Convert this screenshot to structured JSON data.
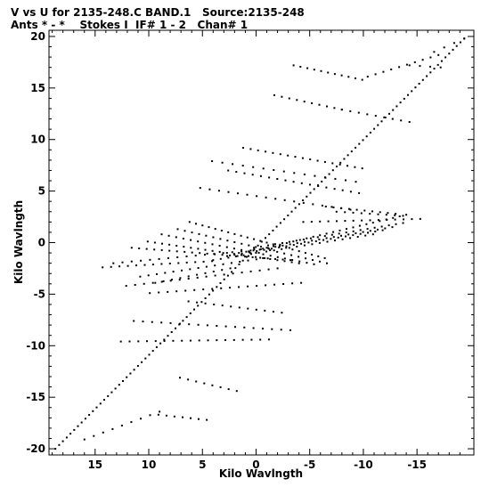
{
  "header": {
    "line1": "V vs U for 2135-248.C BAND.1   Source:2135-248",
    "line2": "Ants * - *    Stokes I  IF# 1 - 2   Chan# 1"
  },
  "chart_data": {
    "type": "scatter",
    "title": "V vs U for 2135-248.C BAND.1   Source:2135-248",
    "subtitle": "Ants * - *    Stokes I  IF# 1 - 2   Chan# 1",
    "xlabel": "Kilo Wavlngth",
    "ylabel": "Kilo Wavlngth",
    "xlim": [
      19.3,
      -20.3
    ],
    "ylim": [
      -20.6,
      20.6
    ],
    "x_reversed": true,
    "x_ticks": [
      15,
      10,
      5,
      0,
      -5,
      -10,
      -15
    ],
    "x_tick_labels": [
      "15",
      "10",
      "5",
      "0",
      "-5",
      "-10",
      "-15"
    ],
    "y_ticks": [
      20,
      15,
      10,
      5,
      0,
      -5,
      -10,
      -15,
      -20
    ],
    "y_tick_labels": [
      "20",
      "15",
      "10",
      "5",
      "0",
      "-5",
      "-10",
      "-15",
      "-20"
    ],
    "grid": false,
    "legend": "none",
    "marker_color": "#000000",
    "tracks": [
      {
        "from": [
          18.7,
          -20.0
        ],
        "to": [
          -19.4,
          19.8
        ],
        "n": 110
      },
      {
        "from": [
          -3.5,
          17.2
        ],
        "to": [
          -9.9,
          15.8
        ],
        "n": 11
      },
      {
        "from": [
          -1.7,
          14.3
        ],
        "to": [
          -8.0,
          12.9
        ],
        "n": 10
      },
      {
        "from": [
          -10.4,
          16.1
        ],
        "to": [
          -17.0,
          18.2
        ],
        "n": 10
      },
      {
        "from": [
          -8.0,
          12.9
        ],
        "to": [
          -14.3,
          11.7
        ],
        "n": 9
      },
      {
        "from": [
          -16.6,
          18.5
        ],
        "to": [
          -19.4,
          19.8
        ],
        "n": 4
      },
      {
        "from": [
          -14.3,
          17.2
        ],
        "to": [
          -17.2,
          17.0
        ],
        "n": 4
      },
      {
        "from": [
          1.2,
          9.2
        ],
        "to": [
          -9.9,
          7.2
        ],
        "n": 17
      },
      {
        "from": [
          2.6,
          7.0
        ],
        "to": [
          -9.6,
          4.8
        ],
        "n": 17
      },
      {
        "from": [
          5.2,
          5.3
        ],
        "to": [
          -8.8,
          3.2
        ],
        "n": 17
      },
      {
        "from": [
          4.1,
          7.9
        ],
        "to": [
          -9.3,
          5.9
        ],
        "n": 15
      },
      {
        "from": [
          -4.4,
          2.0
        ],
        "to": [
          -15.3,
          2.3
        ],
        "n": 15
      },
      {
        "from": [
          -6.5,
          3.5
        ],
        "to": [
          -13.0,
          2.8
        ],
        "n": 10
      },
      {
        "from": [
          -7.5,
          3.0
        ],
        "to": [
          -13.7,
          2.6
        ],
        "n": 9
      },
      {
        "from": [
          6.2,
          2.0
        ],
        "to": [
          -6.4,
          -1.5
        ],
        "n": 22
      },
      {
        "from": [
          7.3,
          1.3
        ],
        "to": [
          -6.6,
          -2.0
        ],
        "n": 22
      },
      {
        "from": [
          8.8,
          0.8
        ],
        "to": [
          -5.4,
          -2.1
        ],
        "n": 22
      },
      {
        "from": [
          10.1,
          0.1
        ],
        "to": [
          -4.0,
          -2.0
        ],
        "n": 22
      },
      {
        "from": [
          11.6,
          -0.5
        ],
        "to": [
          -3.2,
          -1.7
        ],
        "n": 22
      },
      {
        "from": [
          -1.0,
          -0.5
        ],
        "to": [
          -14.0,
          2.7
        ],
        "n": 22
      },
      {
        "from": [
          0.2,
          -0.5
        ],
        "to": [
          -13.7,
          1.9
        ],
        "n": 22
      },
      {
        "from": [
          1.6,
          -1.0
        ],
        "to": [
          -12.7,
          1.5
        ],
        "n": 22
      },
      {
        "from": [
          2.7,
          -1.3
        ],
        "to": [
          -11.8,
          1.2
        ],
        "n": 22
      },
      {
        "from": [
          4.0,
          -1.7
        ],
        "to": [
          -10.9,
          0.8
        ],
        "n": 22
      },
      {
        "from": [
          14.3,
          -2.4
        ],
        "to": [
          4.1,
          -1.8
        ],
        "n": 14
      },
      {
        "from": [
          13.3,
          -2.0
        ],
        "to": [
          -1.2,
          -0.6
        ],
        "n": 18
      },
      {
        "from": [
          10.8,
          -3.3
        ],
        "to": [
          -0.8,
          -1.5
        ],
        "n": 16
      },
      {
        "from": [
          9.4,
          -3.9
        ],
        "to": [
          2.4,
          -2.5
        ],
        "n": 10
      },
      {
        "from": [
          9.9,
          -4.9
        ],
        "to": [
          -4.2,
          -3.9
        ],
        "n": 18
      },
      {
        "from": [
          12.1,
          -4.2
        ],
        "to": [
          -2.0,
          -2.5
        ],
        "n": 18
      },
      {
        "from": [
          6.3,
          -5.7
        ],
        "to": [
          -2.4,
          -6.8
        ],
        "n": 12
      },
      {
        "from": [
          11.4,
          -7.6
        ],
        "to": [
          -3.2,
          -8.5
        ],
        "n": 18
      },
      {
        "from": [
          12.6,
          -9.6
        ],
        "to": [
          -1.2,
          -9.4
        ],
        "n": 18
      },
      {
        "from": [
          7.1,
          -13.1
        ],
        "to": [
          1.8,
          -14.4
        ],
        "n": 8
      },
      {
        "from": [
          9.1,
          -16.7
        ],
        "to": [
          4.6,
          -17.2
        ],
        "n": 7
      },
      {
        "from": [
          16.0,
          -19.1
        ],
        "to": [
          9.0,
          -16.4
        ],
        "n": 9
      }
    ]
  }
}
